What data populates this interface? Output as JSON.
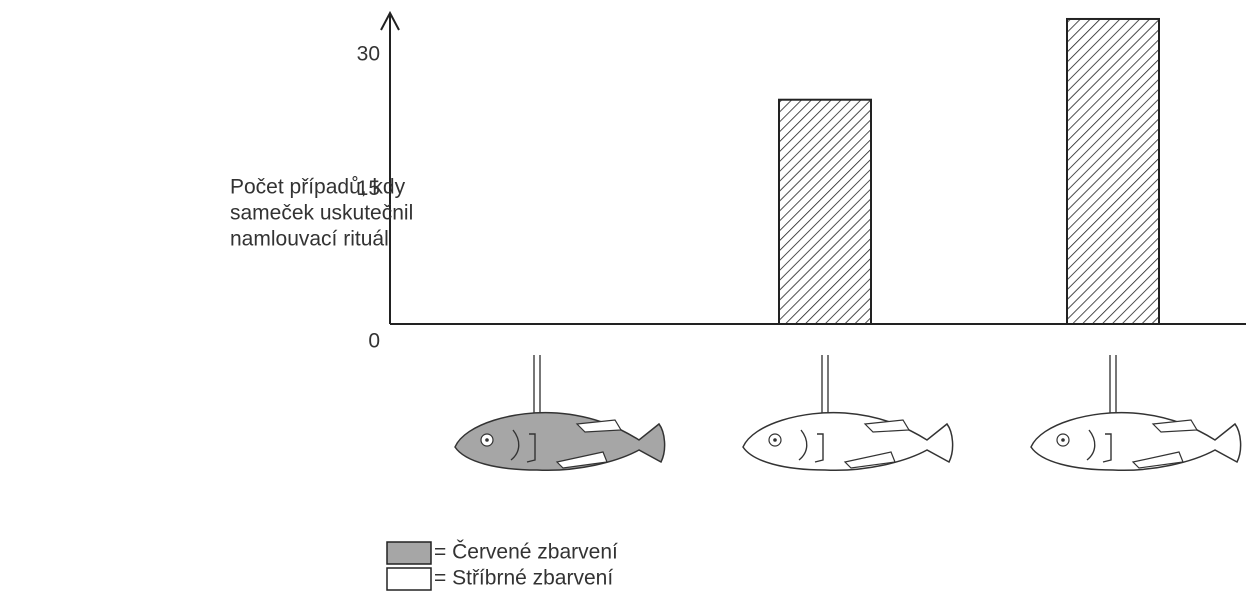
{
  "chart_data": {
    "type": "bar",
    "y_label": [
      "Počet případů, kdy",
      "sameček uskutečnil",
      "namlouvací rituál"
    ],
    "categories": [
      null,
      null,
      null
    ],
    "values": [
      0,
      25,
      34
    ],
    "category_colors": [
      "#a6a6a6",
      "#ffffff",
      "#ffffff"
    ],
    "ylim": [
      0,
      35
    ],
    "yticks": [
      0,
      15,
      30
    ],
    "legend": [
      {
        "label": "= Červené zbarvení",
        "color": "#a6a6a6"
      },
      {
        "label": "= Stříbrné zbarvení",
        "color": "#ffffff"
      }
    ]
  }
}
